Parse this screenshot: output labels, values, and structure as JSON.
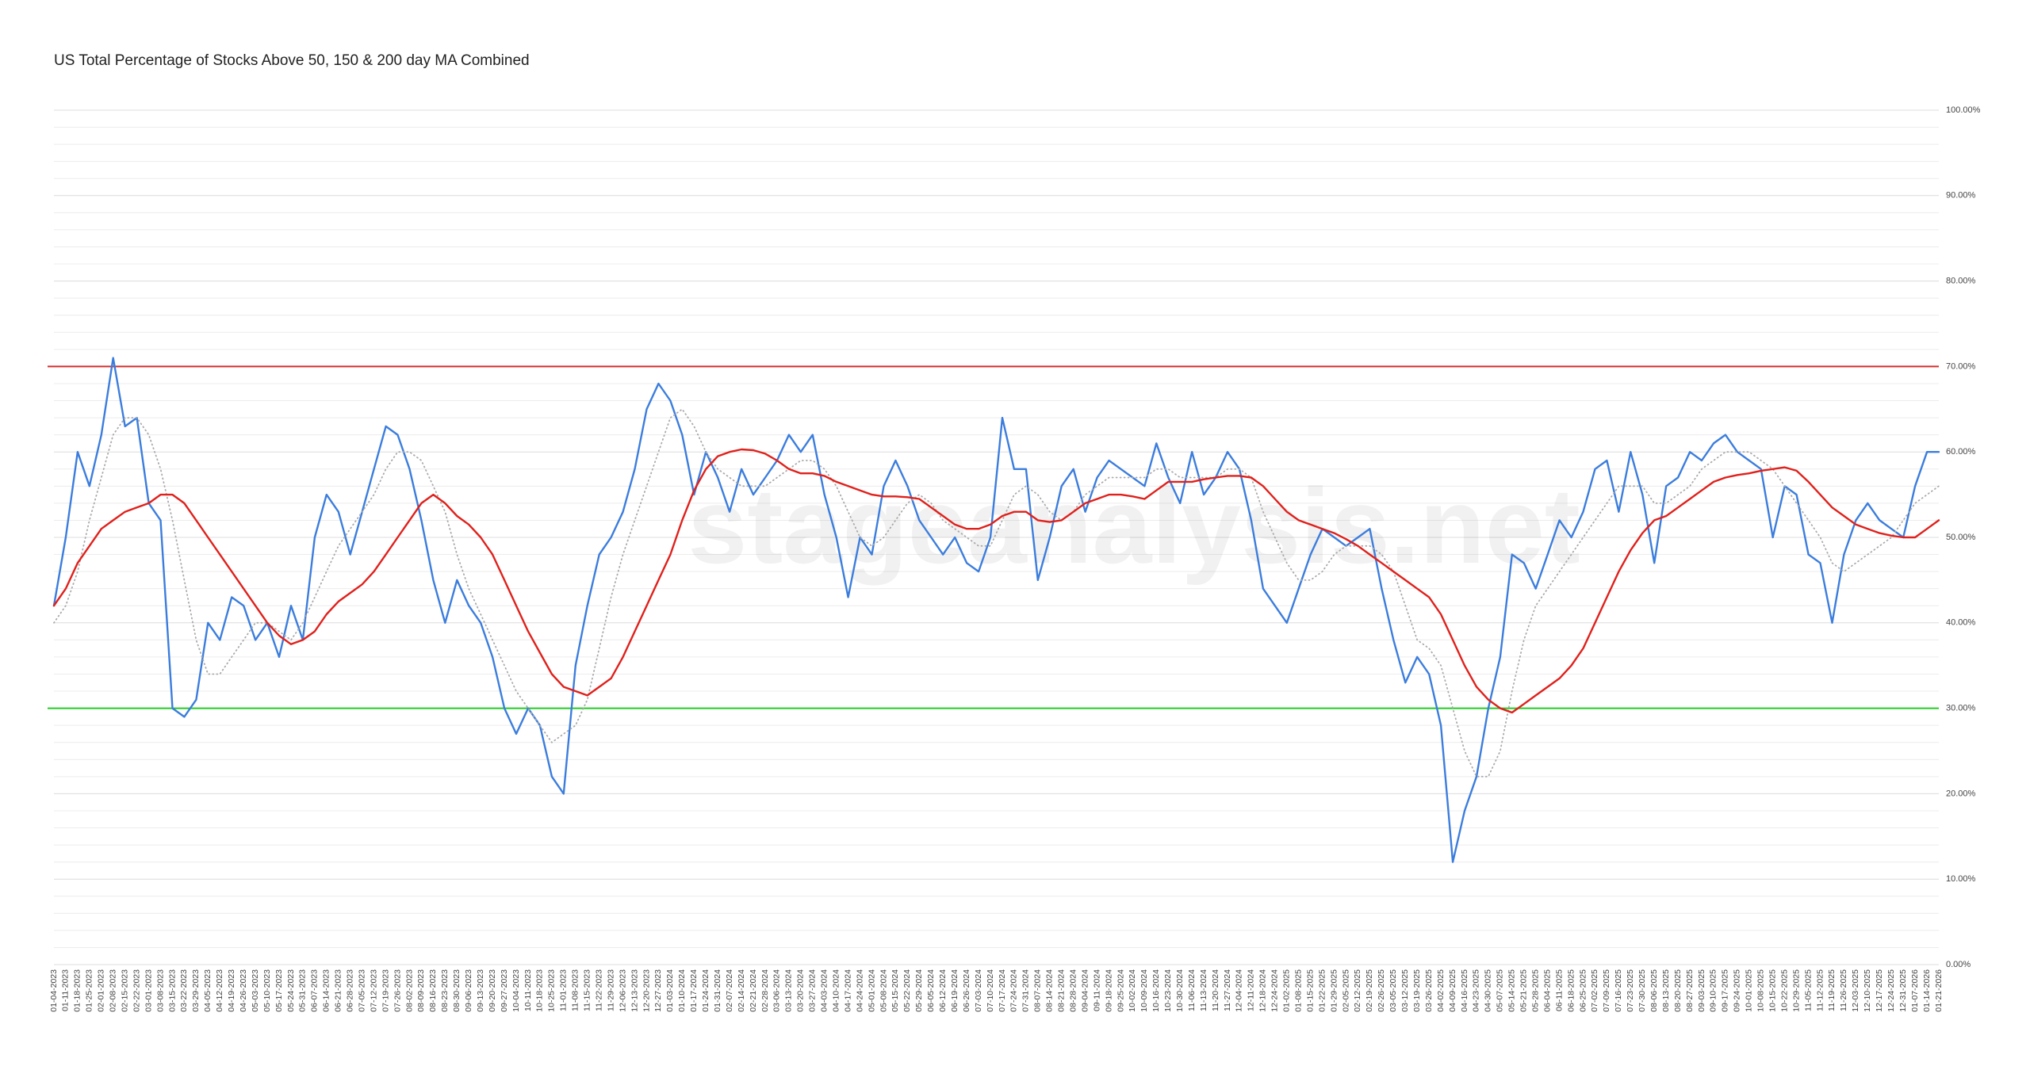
{
  "chart_data": {
    "type": "line",
    "title": "US Total Percentage of Stocks Above 50, 150 & 200 day MA Combined",
    "watermark": "stageanalysis.net",
    "categories": [
      "01-04-2023",
      "01-11-2023",
      "01-18-2023",
      "01-25-2023",
      "02-01-2023",
      "02-08-2023",
      "02-15-2023",
      "02-22-2023",
      "03-01-2023",
      "03-08-2023",
      "03-15-2023",
      "03-22-2023",
      "03-29-2023",
      "04-05-2023",
      "04-12-2023",
      "04-19-2023",
      "04-26-2023",
      "05-03-2023",
      "05-10-2023",
      "05-17-2023",
      "05-24-2023",
      "05-31-2023",
      "06-07-2023",
      "06-14-2023",
      "06-21-2023",
      "06-28-2023",
      "07-05-2023",
      "07-12-2023",
      "07-19-2023",
      "07-26-2023",
      "08-02-2023",
      "08-09-2023",
      "08-16-2023",
      "08-23-2023",
      "08-30-2023",
      "09-06-2023",
      "09-13-2023",
      "09-20-2023",
      "09-27-2023",
      "10-04-2023",
      "10-11-2023",
      "10-18-2023",
      "10-25-2023",
      "11-01-2023",
      "11-08-2023",
      "11-15-2023",
      "11-22-2023",
      "11-29-2023",
      "12-06-2023",
      "12-13-2023",
      "12-20-2023",
      "12-27-2023",
      "01-03-2024",
      "01-10-2024",
      "01-17-2024",
      "01-24-2024",
      "01-31-2024",
      "02-07-2024",
      "02-14-2024",
      "02-21-2024",
      "02-28-2024",
      "03-06-2024",
      "03-13-2024",
      "03-20-2024",
      "03-27-2024",
      "04-03-2024",
      "04-10-2024",
      "04-17-2024",
      "04-24-2024",
      "05-01-2024",
      "05-08-2024",
      "05-15-2024",
      "05-22-2024",
      "05-29-2024",
      "06-05-2024",
      "06-12-2024",
      "06-19-2024",
      "06-26-2024",
      "07-03-2024",
      "07-10-2024",
      "07-17-2024",
      "07-24-2024",
      "07-31-2024",
      "08-07-2024",
      "08-14-2024",
      "08-21-2024",
      "08-28-2024",
      "09-04-2024",
      "09-11-2024",
      "09-18-2024",
      "09-25-2024",
      "10-02-2024",
      "10-09-2024",
      "10-16-2024",
      "10-23-2024",
      "10-30-2024",
      "11-06-2024",
      "11-13-2024",
      "11-20-2024",
      "11-27-2024",
      "12-04-2024",
      "12-11-2024",
      "12-18-2024",
      "12-24-2024",
      "01-02-2025",
      "01-08-2025",
      "01-15-2025",
      "01-22-2025",
      "01-29-2025",
      "02-05-2025",
      "02-12-2025",
      "02-19-2025",
      "02-26-2025",
      "03-05-2025",
      "03-12-2025",
      "03-19-2025",
      "03-26-2025",
      "04-02-2025",
      "04-09-2025",
      "04-16-2025",
      "04-23-2025",
      "04-30-2025",
      "05-07-2025",
      "05-14-2025",
      "05-21-2025",
      "05-28-2025",
      "06-04-2025",
      "06-11-2025",
      "06-18-2025",
      "06-25-2025",
      "07-02-2025",
      "07-09-2025",
      "07-16-2025",
      "07-23-2025",
      "07-30-2025",
      "08-06-2025",
      "08-13-2025",
      "08-20-2025",
      "08-27-2025",
      "09-03-2025",
      "09-10-2025",
      "09-17-2025",
      "09-24-2025",
      "10-01-2025",
      "10-08-2025",
      "10-15-2025",
      "10-22-2025",
      "10-29-2025",
      "11-05-2025",
      "11-12-2025",
      "11-19-2025",
      "11-26-2025",
      "12-03-2025",
      "12-10-2025",
      "12-17-2025",
      "12-24-2025",
      "12-31-2025",
      "01-07-2026",
      "01-14-2026",
      "01-21-2026"
    ],
    "series": [
      {
        "color": "#3b7ddd",
        "style": "solid",
        "values": [
          42,
          50,
          60,
          56,
          62,
          71,
          63,
          64,
          54,
          52,
          30,
          29,
          31,
          40,
          38,
          43,
          42,
          38,
          40,
          36,
          42,
          38,
          50,
          55,
          53,
          48,
          53,
          58,
          63,
          62,
          58,
          52,
          45,
          40,
          45,
          42,
          40,
          36,
          30,
          27,
          30,
          28,
          22,
          20,
          35,
          42,
          48,
          50,
          53,
          58,
          65,
          68,
          66,
          62,
          55,
          60,
          57,
          53,
          58,
          55,
          57,
          59,
          62,
          60,
          62,
          55,
          50,
          43,
          50,
          48,
          56,
          59,
          56,
          52,
          50,
          48,
          50,
          47,
          46,
          50,
          64,
          58,
          58,
          45,
          50,
          56,
          58,
          53,
          57,
          59,
          58,
          57,
          56,
          61,
          57,
          54,
          60,
          55,
          57,
          60,
          58,
          52,
          44,
          42,
          40,
          44,
          48,
          51,
          50,
          49,
          50,
          51,
          44,
          38,
          33,
          36,
          34,
          28,
          12,
          18,
          22,
          30,
          36,
          48,
          47,
          44,
          48,
          52,
          50,
          53,
          58,
          59,
          53,
          60,
          55,
          47,
          56,
          57,
          60,
          59,
          61,
          62,
          60,
          59,
          58,
          50,
          56,
          55,
          48,
          47,
          40,
          48,
          52,
          54,
          52,
          51,
          50,
          56,
          60,
          60
        ]
      },
      {
        "color": "#aaaaaa",
        "style": "dotted",
        "values": [
          40,
          42,
          46,
          52,
          57,
          62,
          64,
          64,
          62,
          58,
          52,
          45,
          38,
          34,
          34,
          36,
          38,
          40,
          40,
          39,
          38,
          40,
          43,
          46,
          49,
          51,
          53,
          55,
          58,
          60,
          60,
          59,
          56,
          53,
          48,
          44,
          41,
          38,
          35,
          32,
          30,
          28,
          26,
          27,
          28,
          31,
          37,
          43,
          48,
          52,
          56,
          60,
          64,
          65,
          63,
          60,
          58,
          57,
          56,
          56,
          56,
          57,
          58,
          59,
          59,
          58,
          56,
          53,
          50,
          49,
          50,
          52,
          54,
          55,
          54,
          52,
          51,
          50,
          49,
          49,
          52,
          55,
          56,
          55,
          53,
          52,
          53,
          55,
          56,
          57,
          57,
          57,
          57,
          58,
          58,
          57,
          57,
          57,
          57,
          58,
          58,
          57,
          53,
          50,
          47,
          45,
          45,
          46,
          48,
          49,
          49,
          49,
          48,
          46,
          42,
          38,
          37,
          35,
          30,
          25,
          22,
          22,
          25,
          32,
          38,
          42,
          44,
          46,
          48,
          50,
          52,
          54,
          56,
          56,
          56,
          54,
          54,
          55,
          56,
          58,
          59,
          60,
          60,
          60,
          59,
          58,
          56,
          54,
          52,
          50,
          47,
          46,
          47,
          48,
          49,
          50,
          52,
          54,
          55,
          56
        ]
      },
      {
        "color": "#e0201b",
        "style": "solid",
        "values": [
          42,
          44,
          47,
          49,
          51,
          52,
          53,
          53.5,
          54,
          55,
          55,
          54,
          52,
          50,
          48,
          46,
          44,
          42,
          40,
          38.5,
          37.5,
          38,
          39,
          41,
          42.5,
          43.5,
          44.5,
          46,
          48,
          50,
          52,
          54,
          55,
          54,
          52.5,
          51.5,
          50,
          48,
          45,
          42,
          39,
          36.5,
          34,
          32.5,
          32,
          31.5,
          32.5,
          33.5,
          36,
          39,
          42,
          45,
          48,
          52,
          55.5,
          58,
          59.5,
          60,
          60.3,
          60.2,
          59.8,
          59,
          58,
          57.5,
          57.5,
          57.2,
          56.5,
          56,
          55.5,
          55,
          54.8,
          54.8,
          54.7,
          54.5,
          53.5,
          52.5,
          51.5,
          51,
          51,
          51.5,
          52.5,
          53,
          53,
          52,
          51.8,
          52,
          53,
          54,
          54.5,
          55,
          55,
          54.8,
          54.5,
          55.5,
          56.5,
          56.5,
          56.5,
          56.8,
          57,
          57.2,
          57.2,
          57,
          56,
          54.5,
          53,
          52,
          51.5,
          51,
          50.5,
          49.8,
          49,
          48,
          47,
          46,
          45,
          44,
          43,
          41,
          38,
          35,
          32.5,
          31,
          30,
          29.5,
          30.5,
          31.5,
          32.5,
          33.5,
          35,
          37,
          40,
          43,
          46,
          48.5,
          50.5,
          52,
          52.5,
          53.5,
          54.5,
          55.5,
          56.5,
          57,
          57.3,
          57.5,
          57.8,
          58,
          58.2,
          57.8,
          56.5,
          55,
          53.5,
          52.5,
          51.5,
          51,
          50.5,
          50.2,
          50,
          50,
          51,
          52
        ]
      }
    ],
    "reference_lines": [
      {
        "value": 70,
        "color": "#d32f2f"
      },
      {
        "value": 30,
        "color": "#22cc22"
      }
    ],
    "ylim": [
      0,
      100
    ],
    "yticks": [
      {
        "value": 0,
        "label": "0.00%"
      },
      {
        "value": 10,
        "label": "10.00%"
      },
      {
        "value": 20,
        "label": "20.00%"
      },
      {
        "value": 30,
        "label": "30.00%"
      },
      {
        "value": 40,
        "label": "40.00%"
      },
      {
        "value": 50,
        "label": "50.00%"
      },
      {
        "value": 60,
        "label": "60.00%"
      },
      {
        "value": 70,
        "label": "70.00%"
      },
      {
        "value": 80,
        "label": "80.00%"
      },
      {
        "value": 90,
        "label": "90.00%"
      },
      {
        "value": 100,
        "label": "100.00%"
      }
    ],
    "grid": true
  }
}
